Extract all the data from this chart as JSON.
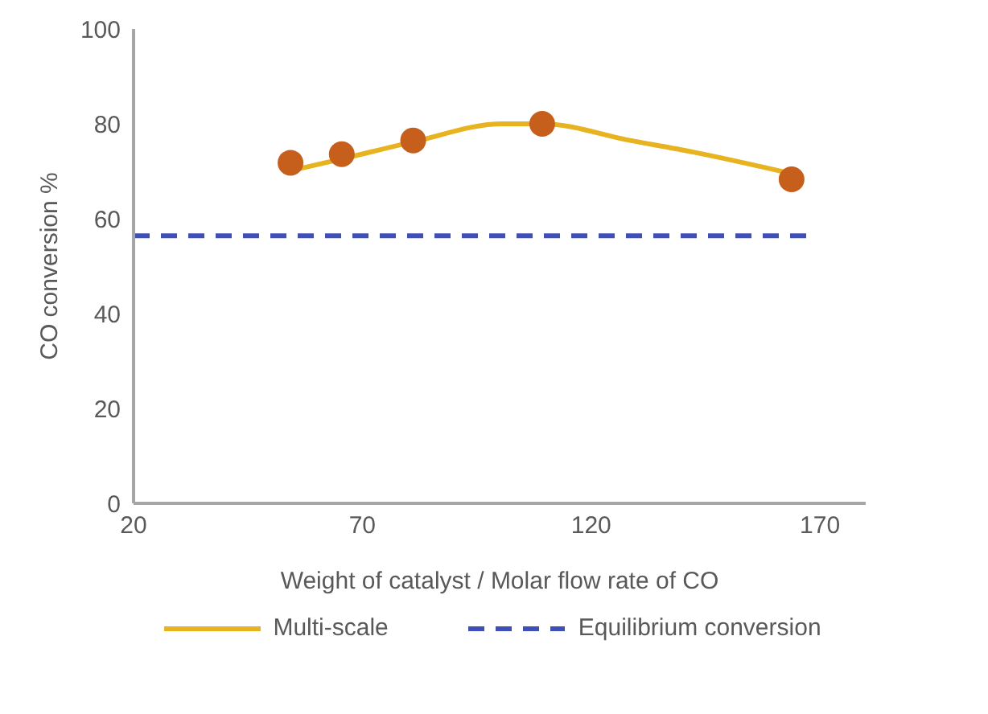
{
  "chart_data": {
    "type": "line",
    "xlabel": "Weight of catalyst / Molar flow rate of CO",
    "ylabel": "CO conversion %",
    "xlim": [
      20,
      180
    ],
    "xticks": [
      20,
      70,
      120,
      170
    ],
    "ylim": [
      0,
      100
    ],
    "yticks": [
      0,
      20,
      40,
      60,
      80,
      100
    ],
    "grid": false,
    "legend": "bottom",
    "marker": "none",
    "series": [
      {
        "type": "scatter",
        "color": "#c65f1c",
        "marker": "circle",
        "x": [
          54.3,
          65.5,
          81.1,
          109.3,
          163.8
        ],
        "values": [
          71.8,
          73.6,
          76.5,
          80.0,
          68.3
        ]
      },
      {
        "name": "Multi-scale",
        "color": "#e8b321",
        "line_style": "solid",
        "x": [
          54.3,
          65.5,
          81.1,
          100.6,
          109.3,
          128.5,
          142.5,
          163.8
        ],
        "values": [
          70.1,
          72.6,
          76.2,
          80.0,
          80.0,
          76.5,
          74.0,
          69.5
        ]
      },
      {
        "name": "Equilibrium conversion",
        "color": "#3f4fb8",
        "line_style": "dashed",
        "x": [
          20,
          168
        ],
        "values": [
          56.4,
          56.4
        ]
      }
    ]
  }
}
